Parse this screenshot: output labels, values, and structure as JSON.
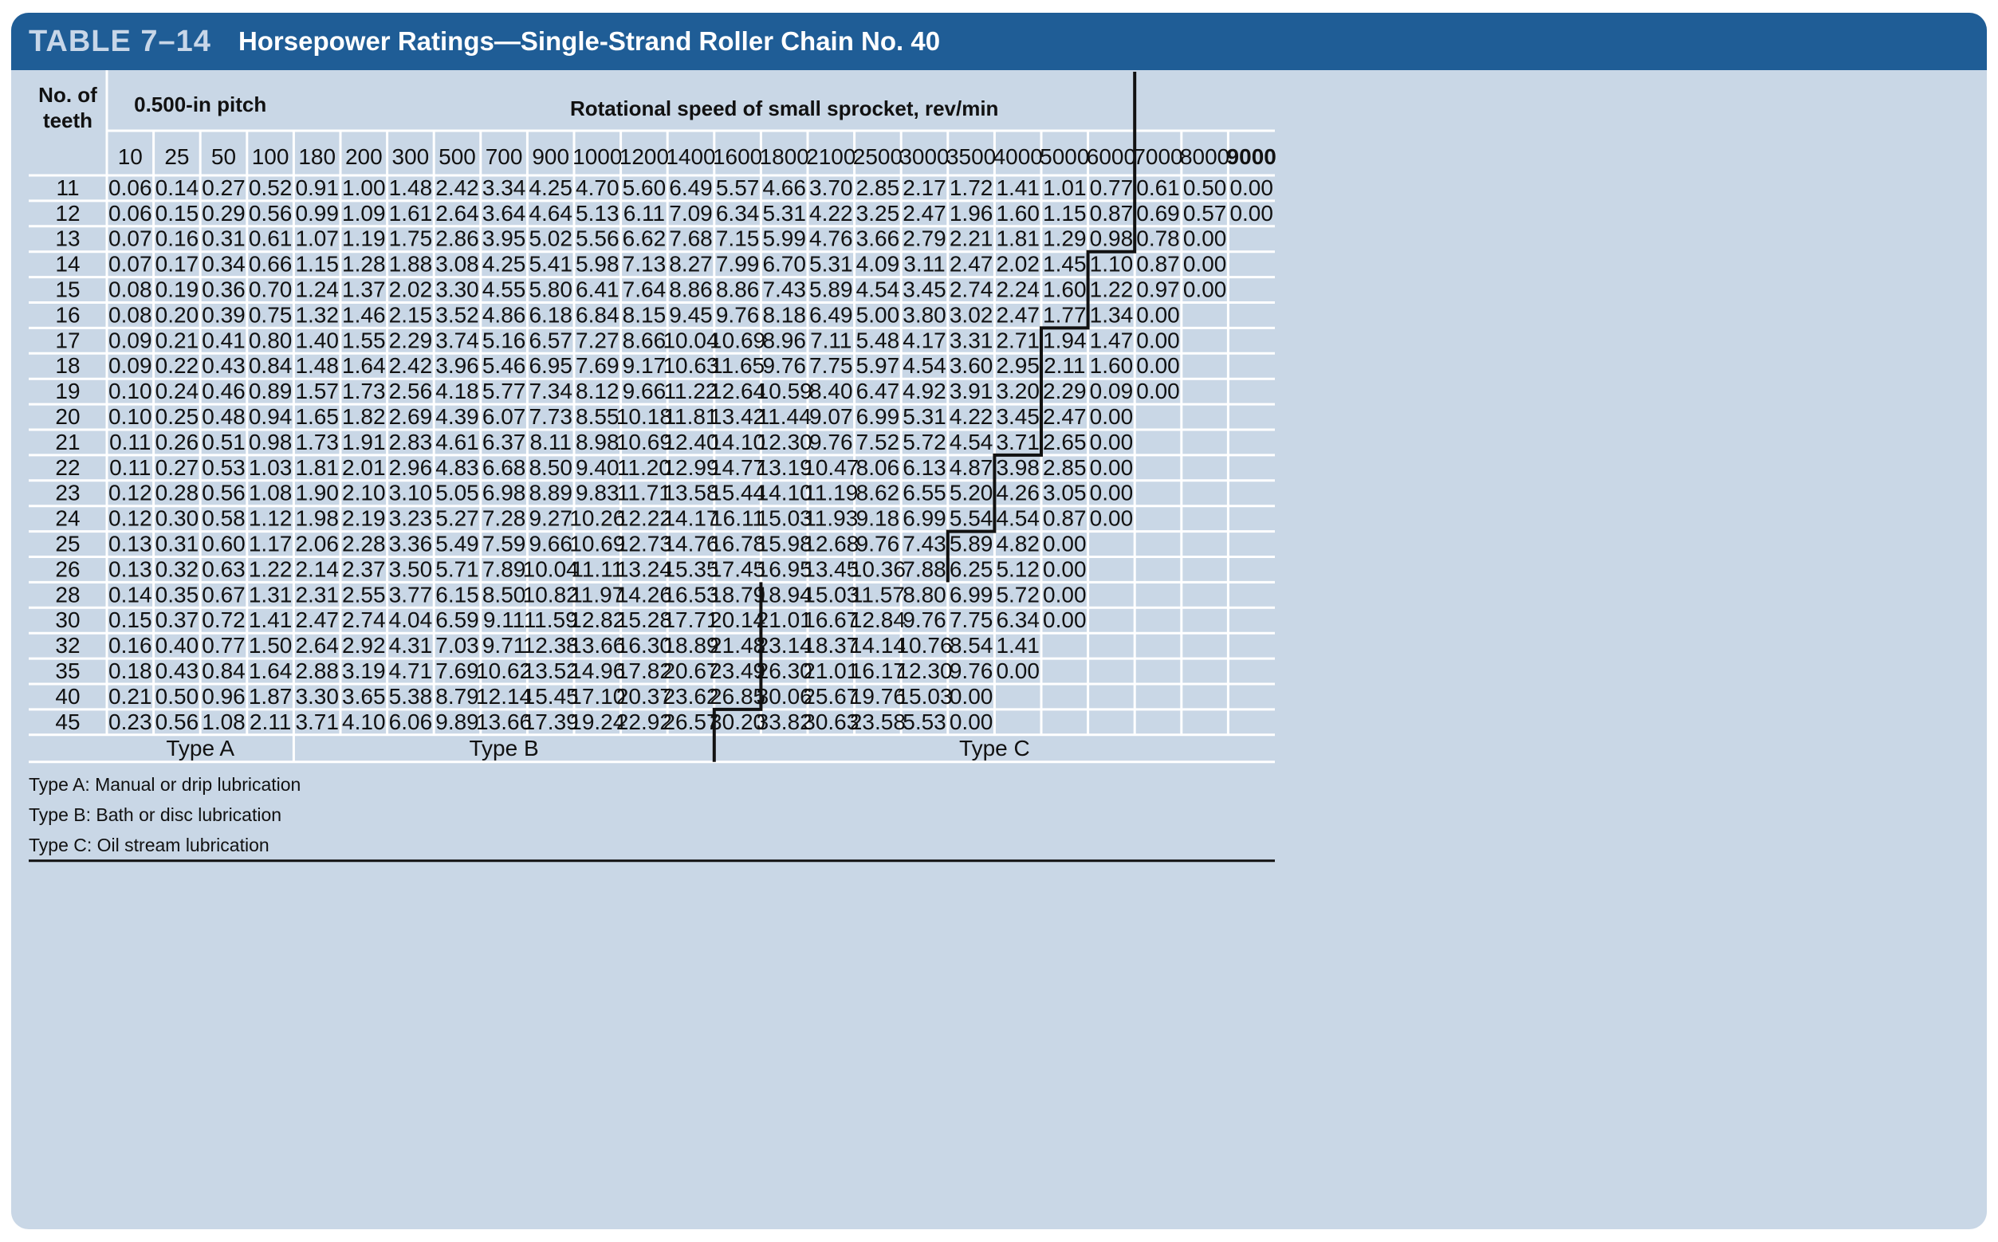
{
  "title": {
    "label": "TABLE 7–14",
    "text": "Horsepower Ratings—Single-Strand Roller Chain No. 40"
  },
  "header": {
    "teeth_col": [
      "No. of",
      "teeth"
    ],
    "pitch": "0.500-in pitch",
    "speed": "Rotational speed of small sprocket, rev/min",
    "speeds": [
      "10",
      "25",
      "50",
      "100",
      "180",
      "200",
      "300",
      "500",
      "700",
      "900",
      "1000",
      "1200",
      "1400",
      "1600",
      "1800",
      "2100",
      "2500",
      "3000",
      "3500",
      "4000",
      "5000",
      "6000",
      "7000",
      "8000",
      "9000"
    ]
  },
  "rows": [
    {
      "teeth": "11",
      "values": [
        "0.06",
        "0.14",
        "0.27",
        "0.52",
        "0.91",
        "1.00",
        "1.48",
        "2.42",
        "3.34",
        "4.25",
        "4.70",
        "5.60",
        "6.49",
        "5.57",
        "4.66",
        "3.70",
        "2.85",
        "2.17",
        "1.72",
        "1.41",
        "1.01",
        "0.77",
        "0.61",
        "0.50",
        "0.00"
      ]
    },
    {
      "teeth": "12",
      "values": [
        "0.06",
        "0.15",
        "0.29",
        "0.56",
        "0.99",
        "1.09",
        "1.61",
        "2.64",
        "3.64",
        "4.64",
        "5.13",
        "6.11",
        "7.09",
        "6.34",
        "5.31",
        "4.22",
        "3.25",
        "2.47",
        "1.96",
        "1.60",
        "1.15",
        "0.87",
        "0.69",
        "0.57",
        "0.00"
      ]
    },
    {
      "teeth": "13",
      "values": [
        "0.07",
        "0.16",
        "0.31",
        "0.61",
        "1.07",
        "1.19",
        "1.75",
        "2.86",
        "3.95",
        "5.02",
        "5.56",
        "6.62",
        "7.68",
        "7.15",
        "5.99",
        "4.76",
        "3.66",
        "2.79",
        "2.21",
        "1.81",
        "1.29",
        "0.98",
        "0.78",
        "0.00",
        ""
      ]
    },
    {
      "teeth": "14",
      "values": [
        "0.07",
        "0.17",
        "0.34",
        "0.66",
        "1.15",
        "1.28",
        "1.88",
        "3.08",
        "4.25",
        "5.41",
        "5.98",
        "7.13",
        "8.27",
        "7.99",
        "6.70",
        "5.31",
        "4.09",
        "3.11",
        "2.47",
        "2.02",
        "1.45",
        "1.10",
        "0.87",
        "0.00",
        ""
      ]
    },
    {
      "teeth": "15",
      "values": [
        "0.08",
        "0.19",
        "0.36",
        "0.70",
        "1.24",
        "1.37",
        "2.02",
        "3.30",
        "4.55",
        "5.80",
        "6.41",
        "7.64",
        "8.86",
        "8.86",
        "7.43",
        "5.89",
        "4.54",
        "3.45",
        "2.74",
        "2.24",
        "1.60",
        "1.22",
        "0.97",
        "0.00",
        ""
      ]
    },
    {
      "teeth": "16",
      "values": [
        "0.08",
        "0.20",
        "0.39",
        "0.75",
        "1.32",
        "1.46",
        "2.15",
        "3.52",
        "4.86",
        "6.18",
        "6.84",
        "8.15",
        "9.45",
        "9.76",
        "8.18",
        "6.49",
        "5.00",
        "3.80",
        "3.02",
        "2.47",
        "1.77",
        "1.34",
        "0.00",
        "",
        ""
      ]
    },
    {
      "teeth": "17",
      "values": [
        "0.09",
        "0.21",
        "0.41",
        "0.80",
        "1.40",
        "1.55",
        "2.29",
        "3.74",
        "5.16",
        "6.57",
        "7.27",
        "8.66",
        "10.04",
        "10.69",
        "8.96",
        "7.11",
        "5.48",
        "4.17",
        "3.31",
        "2.71",
        "1.94",
        "1.47",
        "0.00",
        "",
        ""
      ]
    },
    {
      "teeth": "18",
      "values": [
        "0.09",
        "0.22",
        "0.43",
        "0.84",
        "1.48",
        "1.64",
        "2.42",
        "3.96",
        "5.46",
        "6.95",
        "7.69",
        "9.17",
        "10.63",
        "11.65",
        "9.76",
        "7.75",
        "5.97",
        "4.54",
        "3.60",
        "2.95",
        "2.11",
        "1.60",
        "0.00",
        "",
        ""
      ]
    },
    {
      "teeth": "19",
      "values": [
        "0.10",
        "0.24",
        "0.46",
        "0.89",
        "1.57",
        "1.73",
        "2.56",
        "4.18",
        "5.77",
        "7.34",
        "8.12",
        "9.66",
        "11.22",
        "12.64",
        "10.59",
        "8.40",
        "6.47",
        "4.92",
        "3.91",
        "3.20",
        "2.29",
        "0.09",
        "0.00",
        "",
        ""
      ]
    },
    {
      "teeth": "20",
      "values": [
        "0.10",
        "0.25",
        "0.48",
        "0.94",
        "1.65",
        "1.82",
        "2.69",
        "4.39",
        "6.07",
        "7.73",
        "8.55",
        "10.18",
        "11.81",
        "13.42",
        "11.44",
        "9.07",
        "6.99",
        "5.31",
        "4.22",
        "3.45",
        "2.47",
        "0.00",
        "",
        "",
        ""
      ]
    },
    {
      "teeth": "21",
      "values": [
        "0.11",
        "0.26",
        "0.51",
        "0.98",
        "1.73",
        "1.91",
        "2.83",
        "4.61",
        "6.37",
        "8.11",
        "8.98",
        "10.69",
        "12.40",
        "14.10",
        "12.30",
        "9.76",
        "7.52",
        "5.72",
        "4.54",
        "3.71",
        "2.65",
        "0.00",
        "",
        "",
        ""
      ]
    },
    {
      "teeth": "22",
      "values": [
        "0.11",
        "0.27",
        "0.53",
        "1.03",
        "1.81",
        "2.01",
        "2.96",
        "4.83",
        "6.68",
        "8.50",
        "9.40",
        "11.20",
        "12.99",
        "14.77",
        "13.19",
        "10.47",
        "8.06",
        "6.13",
        "4.87",
        "3.98",
        "2.85",
        "0.00",
        "",
        "",
        ""
      ]
    },
    {
      "teeth": "23",
      "values": [
        "0.12",
        "0.28",
        "0.56",
        "1.08",
        "1.90",
        "2.10",
        "3.10",
        "5.05",
        "6.98",
        "8.89",
        "9.83",
        "11.71",
        "13.58",
        "15.44",
        "14.10",
        "11.19",
        "8.62",
        "6.55",
        "5.20",
        "4.26",
        "3.05",
        "0.00",
        "",
        "",
        ""
      ]
    },
    {
      "teeth": "24",
      "values": [
        "0.12",
        "0.30",
        "0.58",
        "1.12",
        "1.98",
        "2.19",
        "3.23",
        "5.27",
        "7.28",
        "9.27",
        "10.26",
        "12.22",
        "14.17",
        "16.11",
        "15.03",
        "11.93",
        "9.18",
        "6.99",
        "5.54",
        "4.54",
        "0.87",
        "0.00",
        "",
        "",
        ""
      ]
    },
    {
      "teeth": "25",
      "values": [
        "0.13",
        "0.31",
        "0.60",
        "1.17",
        "2.06",
        "2.28",
        "3.36",
        "5.49",
        "7.59",
        "9.66",
        "10.69",
        "12.73",
        "14.76",
        "16.78",
        "15.98",
        "12.68",
        "9.76",
        "7.43",
        "5.89",
        "4.82",
        "0.00",
        "",
        "",
        "",
        ""
      ]
    },
    {
      "teeth": "26",
      "values": [
        "0.13",
        "0.32",
        "0.63",
        "1.22",
        "2.14",
        "2.37",
        "3.50",
        "5.71",
        "7.89",
        "10.04",
        "11.11",
        "13.24",
        "15.35",
        "17.45",
        "16.95",
        "13.45",
        "10.36",
        "7.88",
        "6.25",
        "5.12",
        "0.00",
        "",
        "",
        "",
        ""
      ]
    },
    {
      "teeth": "28",
      "values": [
        "0.14",
        "0.35",
        "0.67",
        "1.31",
        "2.31",
        "2.55",
        "3.77",
        "6.15",
        "8.50",
        "10.82",
        "11.97",
        "14.26",
        "16.53",
        "18.79",
        "18.94",
        "15.03",
        "11.57",
        "8.80",
        "6.99",
        "5.72",
        "0.00",
        "",
        "",
        "",
        ""
      ]
    },
    {
      "teeth": "30",
      "values": [
        "0.15",
        "0.37",
        "0.72",
        "1.41",
        "2.47",
        "2.74",
        "4.04",
        "6.59",
        "9.11",
        "11.59",
        "12.82",
        "15.28",
        "17.71",
        "20.14",
        "21.01",
        "16.67",
        "12.84",
        "9.76",
        "7.75",
        "6.34",
        "0.00",
        "",
        "",
        "",
        ""
      ]
    },
    {
      "teeth": "32",
      "values": [
        "0.16",
        "0.40",
        "0.77",
        "1.50",
        "2.64",
        "2.92",
        "4.31",
        "7.03",
        "9.71",
        "12.38",
        "13.66",
        "16.30",
        "18.89",
        "21.48",
        "23.14",
        "18.37",
        "14.14",
        "10.76",
        "8.54",
        "1.41",
        "",
        "",
        "",
        "",
        ""
      ]
    },
    {
      "teeth": "35",
      "values": [
        "0.18",
        "0.43",
        "0.84",
        "1.64",
        "2.88",
        "3.19",
        "4.71",
        "7.69",
        "10.62",
        "13.52",
        "14.96",
        "17.82",
        "20.67",
        "23.49",
        "26.30",
        "21.01",
        "16.17",
        "12.30",
        "9.76",
        "0.00",
        "",
        "",
        "",
        "",
        ""
      ]
    },
    {
      "teeth": "40",
      "values": [
        "0.21",
        "0.50",
        "0.96",
        "1.87",
        "3.30",
        "3.65",
        "5.38",
        "8.79",
        "12.14",
        "15.45",
        "17.10",
        "20.37",
        "23.62",
        "26.85",
        "30.06",
        "25.67",
        "19.76",
        "15.03",
        "0.00",
        "",
        "",
        "",
        "",
        "",
        ""
      ]
    },
    {
      "teeth": "45",
      "values": [
        "0.23",
        "0.56",
        "1.08",
        "2.11",
        "3.71",
        "4.10",
        "6.06",
        "9.89",
        "13.66",
        "17.39",
        "19.24",
        "22.92",
        "26.57",
        "30.20",
        "33.82",
        "30.63",
        "23.58",
        "5.53",
        "0.00",
        "",
        "",
        "",
        "",
        "",
        ""
      ]
    }
  ],
  "type_row": {
    "a": "Type A",
    "b": "Type B",
    "c": "Type C"
  },
  "notes": [
    "Type A: Manual or drip lubrication",
    "Type B: Bath or disc lubrication",
    "Type C: Oil stream lubrication"
  ],
  "colors": {
    "header_bar": "#1f5d96",
    "background": "#c9d7e6",
    "grid": "#ffffff",
    "stair": "#111111"
  }
}
